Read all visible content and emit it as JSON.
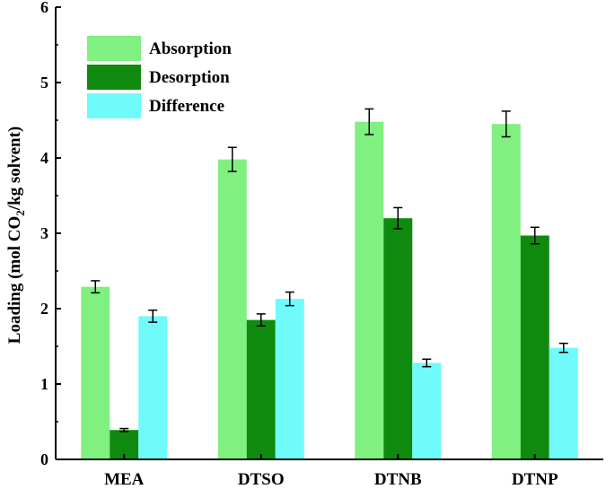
{
  "chart_data": {
    "type": "bar",
    "categories": [
      "MEA",
      "DTSO",
      "DTNB",
      "DTNP"
    ],
    "series": [
      {
        "name": "Absorption",
        "values": [
          2.29,
          3.98,
          4.48,
          4.45
        ],
        "errors": [
          0.08,
          0.16,
          0.17,
          0.17
        ],
        "color": "#80f080"
      },
      {
        "name": "Desorption",
        "values": [
          0.39,
          1.85,
          3.2,
          2.97
        ],
        "errors": [
          0.02,
          0.08,
          0.14,
          0.11
        ],
        "color": "#0f8a0f"
      },
      {
        "name": "Difference",
        "values": [
          1.9,
          2.13,
          1.28,
          1.48
        ],
        "errors": [
          0.08,
          0.09,
          0.05,
          0.06
        ],
        "color": "#70fbfb"
      }
    ],
    "ylabel_prefix": "Loading (mol CO",
    "ylabel_sub": "2",
    "ylabel_suffix": "/kg solvent)",
    "xlabel": "",
    "ylim": [
      0,
      6
    ],
    "yticks": [
      "0",
      "1",
      "2",
      "3",
      "4",
      "5",
      "6"
    ],
    "grid": false,
    "legend_position": "top-left"
  }
}
